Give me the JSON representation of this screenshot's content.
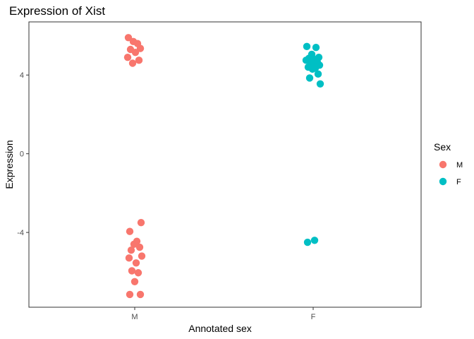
{
  "chart_data": {
    "type": "scatter",
    "title": "Expression of Xist",
    "xlabel": "Annotated sex",
    "ylabel": "Expression",
    "categories": [
      "M",
      "F"
    ],
    "y_ticks": [
      4,
      0,
      -4
    ],
    "y_tick_labels": [
      "4",
      "0",
      "-4"
    ],
    "ylim": [
      -7.8,
      6.7
    ],
    "grid": false,
    "legend": {
      "title": "Sex",
      "position": "right",
      "entries": [
        {
          "label": "M",
          "color": "#F8766D"
        },
        {
          "label": "F",
          "color": "#00BFC4"
        }
      ]
    },
    "series": [
      {
        "name": "M",
        "color": "#F8766D",
        "points": [
          {
            "x": "M",
            "y": 5.9
          },
          {
            "x": "M",
            "y": 5.6
          },
          {
            "x": "M",
            "y": 5.7
          },
          {
            "x": "M",
            "y": 5.35
          },
          {
            "x": "M",
            "y": 5.3
          },
          {
            "x": "M",
            "y": 5.15
          },
          {
            "x": "M",
            "y": 4.9
          },
          {
            "x": "M",
            "y": 4.75
          },
          {
            "x": "M",
            "y": 4.6
          },
          {
            "x": "M",
            "y": -3.5
          },
          {
            "x": "M",
            "y": -3.95
          },
          {
            "x": "M",
            "y": -4.45
          },
          {
            "x": "M",
            "y": -4.6
          },
          {
            "x": "M",
            "y": -4.75
          },
          {
            "x": "M",
            "y": -4.9
          },
          {
            "x": "M",
            "y": -5.2
          },
          {
            "x": "M",
            "y": -5.3
          },
          {
            "x": "M",
            "y": -5.55
          },
          {
            "x": "M",
            "y": -5.95
          },
          {
            "x": "M",
            "y": -6.05
          },
          {
            "x": "M",
            "y": -6.5
          },
          {
            "x": "M",
            "y": -7.15
          },
          {
            "x": "M",
            "y": -7.15
          }
        ]
      },
      {
        "name": "F",
        "color": "#00BFC4",
        "points": [
          {
            "x": "F",
            "y": 5.45
          },
          {
            "x": "F",
            "y": 5.4
          },
          {
            "x": "F",
            "y": 5.05
          },
          {
            "x": "F",
            "y": 4.9
          },
          {
            "x": "F",
            "y": 4.85
          },
          {
            "x": "F",
            "y": 4.8
          },
          {
            "x": "F",
            "y": 4.75
          },
          {
            "x": "F",
            "y": 4.65
          },
          {
            "x": "F",
            "y": 4.55
          },
          {
            "x": "F",
            "y": 4.5
          },
          {
            "x": "F",
            "y": 4.4
          },
          {
            "x": "F",
            "y": 4.35
          },
          {
            "x": "F",
            "y": 4.3
          },
          {
            "x": "F",
            "y": 4.05
          },
          {
            "x": "F",
            "y": 3.85
          },
          {
            "x": "F",
            "y": 3.55
          },
          {
            "x": "F",
            "y": -4.5
          },
          {
            "x": "F",
            "y": -4.4
          }
        ]
      }
    ]
  }
}
